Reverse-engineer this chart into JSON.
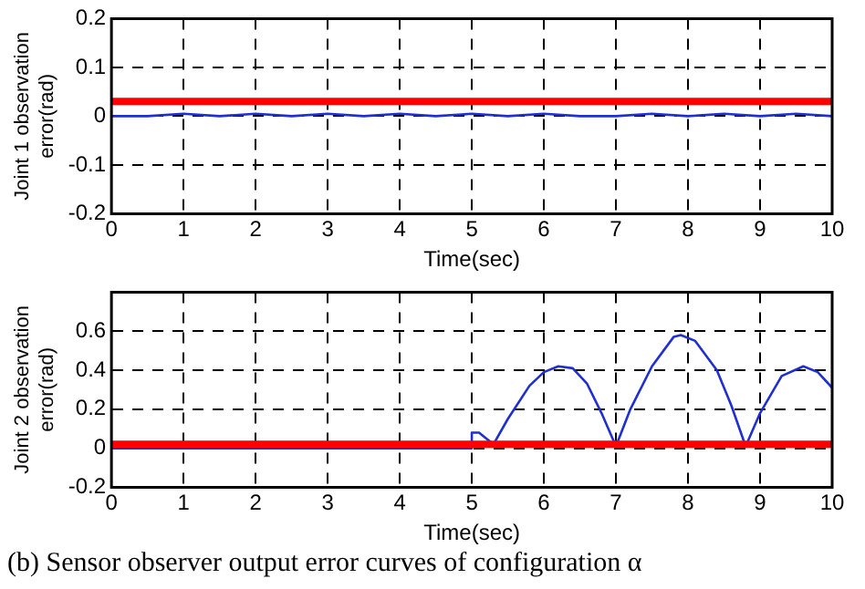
{
  "chart_data": [
    {
      "type": "line",
      "xlabel": "Time(sec)",
      "ylabel": "Joint 1 observation error(rad)",
      "xlim": [
        0,
        10
      ],
      "xticks": [
        0,
        1,
        2,
        3,
        4,
        5,
        6,
        7,
        8,
        9,
        10
      ],
      "ylim": [
        -0.2,
        0.2
      ],
      "yticks": [
        -0.2,
        -0.1,
        0,
        0.1,
        0.2
      ],
      "grid": true,
      "legend": false,
      "marker": "none",
      "line_style": "solid",
      "series": [
        {
          "color": "#1f2fd0",
          "x": [
            0,
            0.5,
            1,
            1.5,
            2,
            2.5,
            3,
            3.5,
            4,
            4.5,
            5,
            5.5,
            6,
            6.5,
            7,
            7.5,
            8,
            8.5,
            9,
            9.5,
            10
          ],
          "values": [
            0,
            0,
            0.005,
            0,
            0.005,
            0,
            0.005,
            0,
            0.005,
            0,
            0.005,
            0,
            0.005,
            0,
            0,
            0.005,
            0,
            0.005,
            0,
            0.005,
            0
          ]
        }
      ],
      "ref_lines": [
        {
          "axis": "y",
          "value": 0.03,
          "color": "#ff0000"
        }
      ]
    },
    {
      "type": "line",
      "xlabel": "Time(sec)",
      "ylabel": "Joint 2 observation error(rad)",
      "xlim": [
        0,
        10
      ],
      "xticks": [
        0,
        1,
        2,
        3,
        4,
        5,
        6,
        7,
        8,
        9,
        10
      ],
      "ylim": [
        -0.2,
        0.8
      ],
      "yticks": [
        -0.2,
        0,
        0.2,
        0.4,
        0.6
      ],
      "grid": true,
      "legend": false,
      "marker": "none",
      "line_style": "solid",
      "series": [
        {
          "color": "#1f2fd0",
          "x": [
            0,
            1,
            2,
            3,
            4,
            4.99,
            5,
            5.1,
            5.3,
            5.5,
            5.8,
            6,
            6.2,
            6.4,
            6.6,
            6.8,
            7,
            7.2,
            7.5,
            7.8,
            7.9,
            8.1,
            8.4,
            8.6,
            8.8,
            9,
            9.3,
            9.6,
            9.8,
            10
          ],
          "values": [
            0,
            0,
            0,
            0,
            0,
            0,
            0.08,
            0.08,
            0.02,
            0.15,
            0.32,
            0.39,
            0.42,
            0.41,
            0.33,
            0.18,
            0.01,
            0.2,
            0.42,
            0.57,
            0.58,
            0.55,
            0.4,
            0.22,
            0.01,
            0.18,
            0.37,
            0.42,
            0.39,
            0.31
          ]
        }
      ],
      "ref_lines": [
        {
          "axis": "y",
          "value": 0.02,
          "color": "#ff0000"
        }
      ],
      "annotations": [
        "(b) Sensor observer output error curves of configuration α"
      ]
    }
  ]
}
